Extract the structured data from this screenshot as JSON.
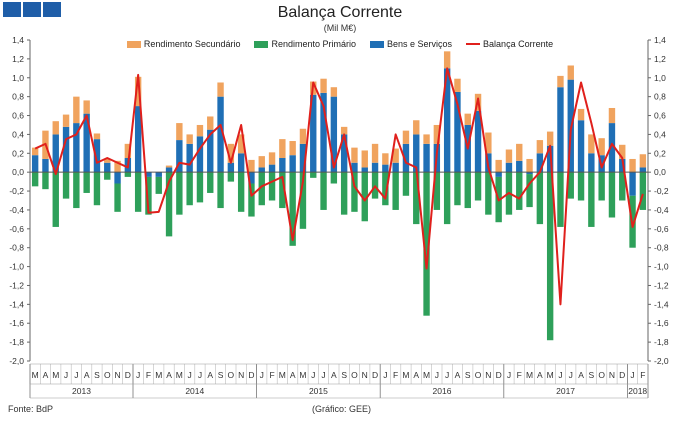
{
  "chart_data": {
    "type": "bar",
    "title": "Balança Corrente",
    "subtitle": "(Mil M€)",
    "source": "Fonte: BdP",
    "credit": "(Gráfico: GEE)",
    "ylim": [
      -2.0,
      1.4
    ],
    "yticks": [
      "1,4",
      "1,2",
      "1,0",
      "0,8",
      "0,6",
      "0,4",
      "0,2",
      "0,0",
      "-0,2",
      "-0,4",
      "-0,6",
      "-0,8",
      "-1,0",
      "-1,2",
      "-1,4",
      "-1,6",
      "-1,8",
      "-2,0"
    ],
    "ytick_values": [
      1.4,
      1.2,
      1.0,
      0.8,
      0.6,
      0.4,
      0.2,
      0.0,
      -0.2,
      -0.4,
      -0.6,
      -0.8,
      -1.0,
      -1.2,
      -1.4,
      -1.6,
      -1.8,
      -2.0
    ],
    "categories": [
      "M",
      "A",
      "M",
      "J",
      "J",
      "A",
      "S",
      "O",
      "N",
      "D",
      "J",
      "F",
      "M",
      "A",
      "M",
      "J",
      "J",
      "A",
      "S",
      "O",
      "N",
      "D",
      "J",
      "F",
      "M",
      "A",
      "M",
      "J",
      "J",
      "A",
      "S",
      "O",
      "N",
      "D",
      "J",
      "F",
      "M",
      "A",
      "M",
      "J",
      "J",
      "A",
      "S",
      "O",
      "N",
      "D",
      "J",
      "F",
      "M",
      "A",
      "M",
      "J",
      "J",
      "A",
      "S",
      "O",
      "N",
      "D",
      "J",
      "F"
    ],
    "years": [
      {
        "label": "2013",
        "start": 0,
        "end": 10
      },
      {
        "label": "2014",
        "start": 10,
        "end": 22
      },
      {
        "label": "2015",
        "start": 22,
        "end": 34
      },
      {
        "label": "2016",
        "start": 34,
        "end": 46
      },
      {
        "label": "2017",
        "start": 46,
        "end": 58
      },
      {
        "label": "2018",
        "start": 58,
        "end": 60
      }
    ],
    "series": [
      {
        "name": "Rendimento Secundário",
        "color": "#f0a35e",
        "type": "bar",
        "values": [
          0.08,
          0.3,
          0.14,
          0.13,
          0.28,
          0.14,
          0.06,
          0.04,
          0.12,
          0.15,
          0.31,
          0.0,
          0.0,
          0.02,
          0.18,
          0.1,
          0.12,
          0.14,
          0.15,
          0.2,
          0.2,
          0.13,
          0.12,
          0.13,
          0.2,
          0.15,
          0.16,
          0.14,
          0.15,
          0.1,
          0.08,
          0.16,
          0.18,
          0.2,
          0.12,
          0.15,
          0.14,
          0.15,
          0.1,
          0.2,
          0.18,
          0.14,
          0.12,
          0.18,
          0.22,
          0.13,
          0.14,
          0.18,
          0.14,
          0.14,
          0.15,
          0.12,
          0.15,
          0.12,
          0.2,
          0.18,
          0.16,
          0.15,
          0.14,
          0.14
        ]
      },
      {
        "name": "Rendimento Primário",
        "color": "#2ea05a",
        "type": "bar",
        "values": [
          -0.15,
          -0.18,
          -0.58,
          -0.28,
          -0.38,
          -0.22,
          -0.35,
          -0.08,
          -0.3,
          -0.05,
          -0.42,
          -0.4,
          -0.18,
          -0.68,
          -0.45,
          -0.35,
          -0.32,
          -0.22,
          -0.38,
          -0.1,
          -0.42,
          -0.35,
          -0.35,
          -0.3,
          -0.38,
          -0.78,
          -0.6,
          -0.06,
          -0.4,
          -0.12,
          -0.45,
          -0.42,
          -0.52,
          -0.28,
          -0.35,
          -0.4,
          -0.25,
          -0.55,
          -1.52,
          -0.4,
          -0.55,
          -0.35,
          -0.38,
          -0.3,
          -0.45,
          -0.48,
          -0.45,
          -0.4,
          -0.35,
          -0.55,
          -1.78,
          -0.58,
          -0.28,
          -0.3,
          -0.58,
          -0.3,
          -0.48,
          -0.3,
          -0.55,
          -0.4
        ]
      },
      {
        "name": "Bens e Serviços",
        "color": "#1f6fb5",
        "type": "bar",
        "values": [
          0.18,
          0.14,
          0.4,
          0.48,
          0.52,
          0.62,
          0.35,
          0.1,
          -0.12,
          0.15,
          0.7,
          -0.05,
          -0.05,
          0.05,
          0.34,
          0.3,
          0.38,
          0.45,
          0.8,
          0.1,
          0.2,
          -0.12,
          0.05,
          0.08,
          0.15,
          0.18,
          0.3,
          0.82,
          0.84,
          0.8,
          0.4,
          0.1,
          0.05,
          0.1,
          0.08,
          0.1,
          0.3,
          0.4,
          0.3,
          0.3,
          1.1,
          0.85,
          0.5,
          0.65,
          0.2,
          -0.05,
          0.1,
          0.12,
          -0.02,
          0.2,
          0.28,
          0.9,
          0.98,
          0.55,
          0.2,
          0.18,
          0.52,
          0.14,
          -0.25,
          0.05
        ]
      },
      {
        "name": "Balança Corrente",
        "color": "#e0201c",
        "type": "line",
        "values": [
          0.25,
          0.3,
          -0.02,
          0.35,
          0.4,
          0.6,
          0.1,
          0.15,
          0.1,
          0.05,
          1.03,
          -0.43,
          -0.42,
          -0.1,
          0.1,
          0.08,
          0.25,
          0.4,
          0.5,
          0.1,
          0.5,
          -0.25,
          -0.15,
          -0.1,
          -0.05,
          -0.72,
          -0.1,
          0.95,
          0.7,
          0.05,
          0.4,
          -0.15,
          -0.3,
          -0.15,
          -0.28,
          0.4,
          0.1,
          0.05,
          -1.02,
          0.2,
          1.1,
          0.72,
          0.25,
          0.78,
          0.05,
          -0.3,
          -0.22,
          -0.28,
          -0.12,
          0.0,
          0.28,
          -1.4,
          0.45,
          0.95,
          0.52,
          0.05,
          0.3,
          0.15,
          -0.58,
          -0.23
        ]
      }
    ]
  }
}
